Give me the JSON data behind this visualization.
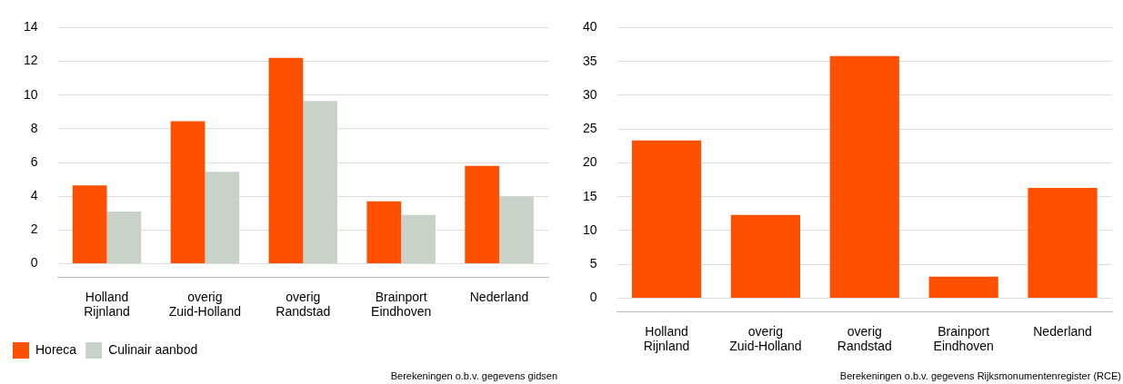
{
  "chart_data": [
    {
      "type": "bar",
      "categories": [
        "Holland Rijnland",
        "overig Zuid-Holland",
        "overig Randstad",
        "Brainport Eindhoven",
        "Nederland"
      ],
      "series": [
        {
          "name": "Horeca",
          "color": "#ff5000",
          "values": [
            4.65,
            8.45,
            12.2,
            3.7,
            5.8
          ]
        },
        {
          "name": "Culinair aanbod",
          "color": "#c9d2c9",
          "values": [
            3.1,
            5.45,
            9.65,
            2.9,
            4.0
          ]
        }
      ],
      "ylim": [
        -0.8,
        14
      ],
      "yticks": [
        0,
        2,
        4,
        6,
        8,
        10,
        12,
        14
      ],
      "grid": "y",
      "legend": "bottom left",
      "annotations": [
        "Berekeningen o.b.v. gegevens gidsen"
      ]
    },
    {
      "type": "bar",
      "categories": [
        "Holland Rijnland",
        "overig Zuid-Holland",
        "overig Randstad",
        "Brainport Eindhoven",
        "Nederland"
      ],
      "values": [
        23.3,
        12.3,
        35.8,
        3.2,
        16.3
      ],
      "color": "#ff5000",
      "ylim": [
        -2,
        40
      ],
      "yticks": [
        0,
        5,
        10,
        15,
        20,
        25,
        30,
        35,
        40
      ],
      "grid": "y",
      "annotations": [
        "Berekeningen o.b.v. gegevens Rijksmonumentenregister (RCE)"
      ]
    }
  ]
}
